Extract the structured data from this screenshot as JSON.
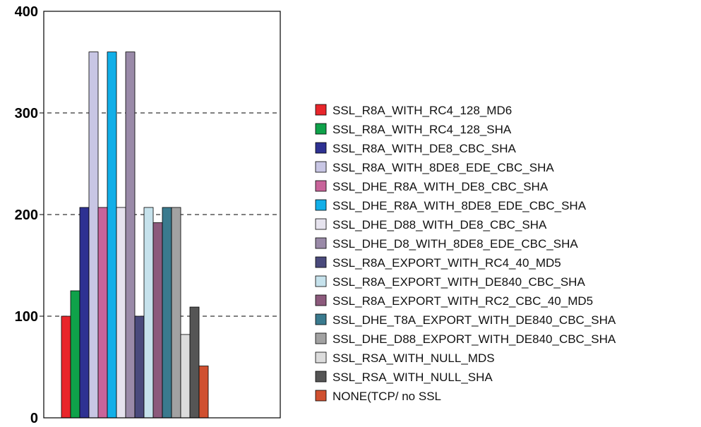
{
  "chart_data": {
    "type": "bar",
    "title": "",
    "xlabel": "",
    "ylabel": "",
    "ylim": [
      0,
      400
    ],
    "yticks": [
      0,
      100,
      200,
      300,
      400
    ],
    "grid": "dashed horizontal lines at 100, 200, 300",
    "legend_position": "right",
    "categories": [
      "SSL_R8A_WITH_RC4_128_MD6",
      "SSL_R8A_WITH_RC4_128_SHA",
      "SSL_R8A_WITH_DE8_CBC_SHA",
      "SSL_R8A_WITH_8DE8_EDE_CBC_SHA",
      "SSL_DHE_R8A_WITH_DE8_CBC_SHA",
      "SSL_DHE_R8A_WITH_8DE8_EDE_CBC_SHA",
      "SSL_DHE_D88_WITH_DE8_CBC_SHA",
      "SSL_DHE_D8_WITH_8DE8_EDE_CBC_SHA",
      "SSL_R8A_EXPORT_WITH_RC4_40_MD5",
      "SSL_R8A_EXPORT_WITH_DE840_CBC_SHA",
      "SSL_R8A_EXPORT_WITH_RC2_CBC_40_MD5",
      "SSL_DHE_T8A_EXPORT_WITH_DE840_CBC_SHA",
      "SSL_DHE_D88_EXPORT_WITH_DE840_CBC_SHA",
      "SSL_RSA_WITH_NULL_MDS",
      "SSL_RSA_WITH_NULL_SHA",
      "NONE(TCP/ no SSL"
    ],
    "values": [
      100,
      125,
      207,
      360,
      207,
      360,
      207,
      360,
      100,
      207,
      192,
      207,
      207,
      82,
      109,
      51
    ],
    "colors": [
      "#e8262b",
      "#0fa24a",
      "#2e3192",
      "#c8c6e4",
      "#c8649a",
      "#12afe8",
      "#e6e3ee",
      "#9a8aa8",
      "#4a4a7c",
      "#c6e2ec",
      "#8c5a7c",
      "#3a7a8e",
      "#a2a2a2",
      "#dcdcdc",
      "#555555",
      "#d05030"
    ]
  }
}
